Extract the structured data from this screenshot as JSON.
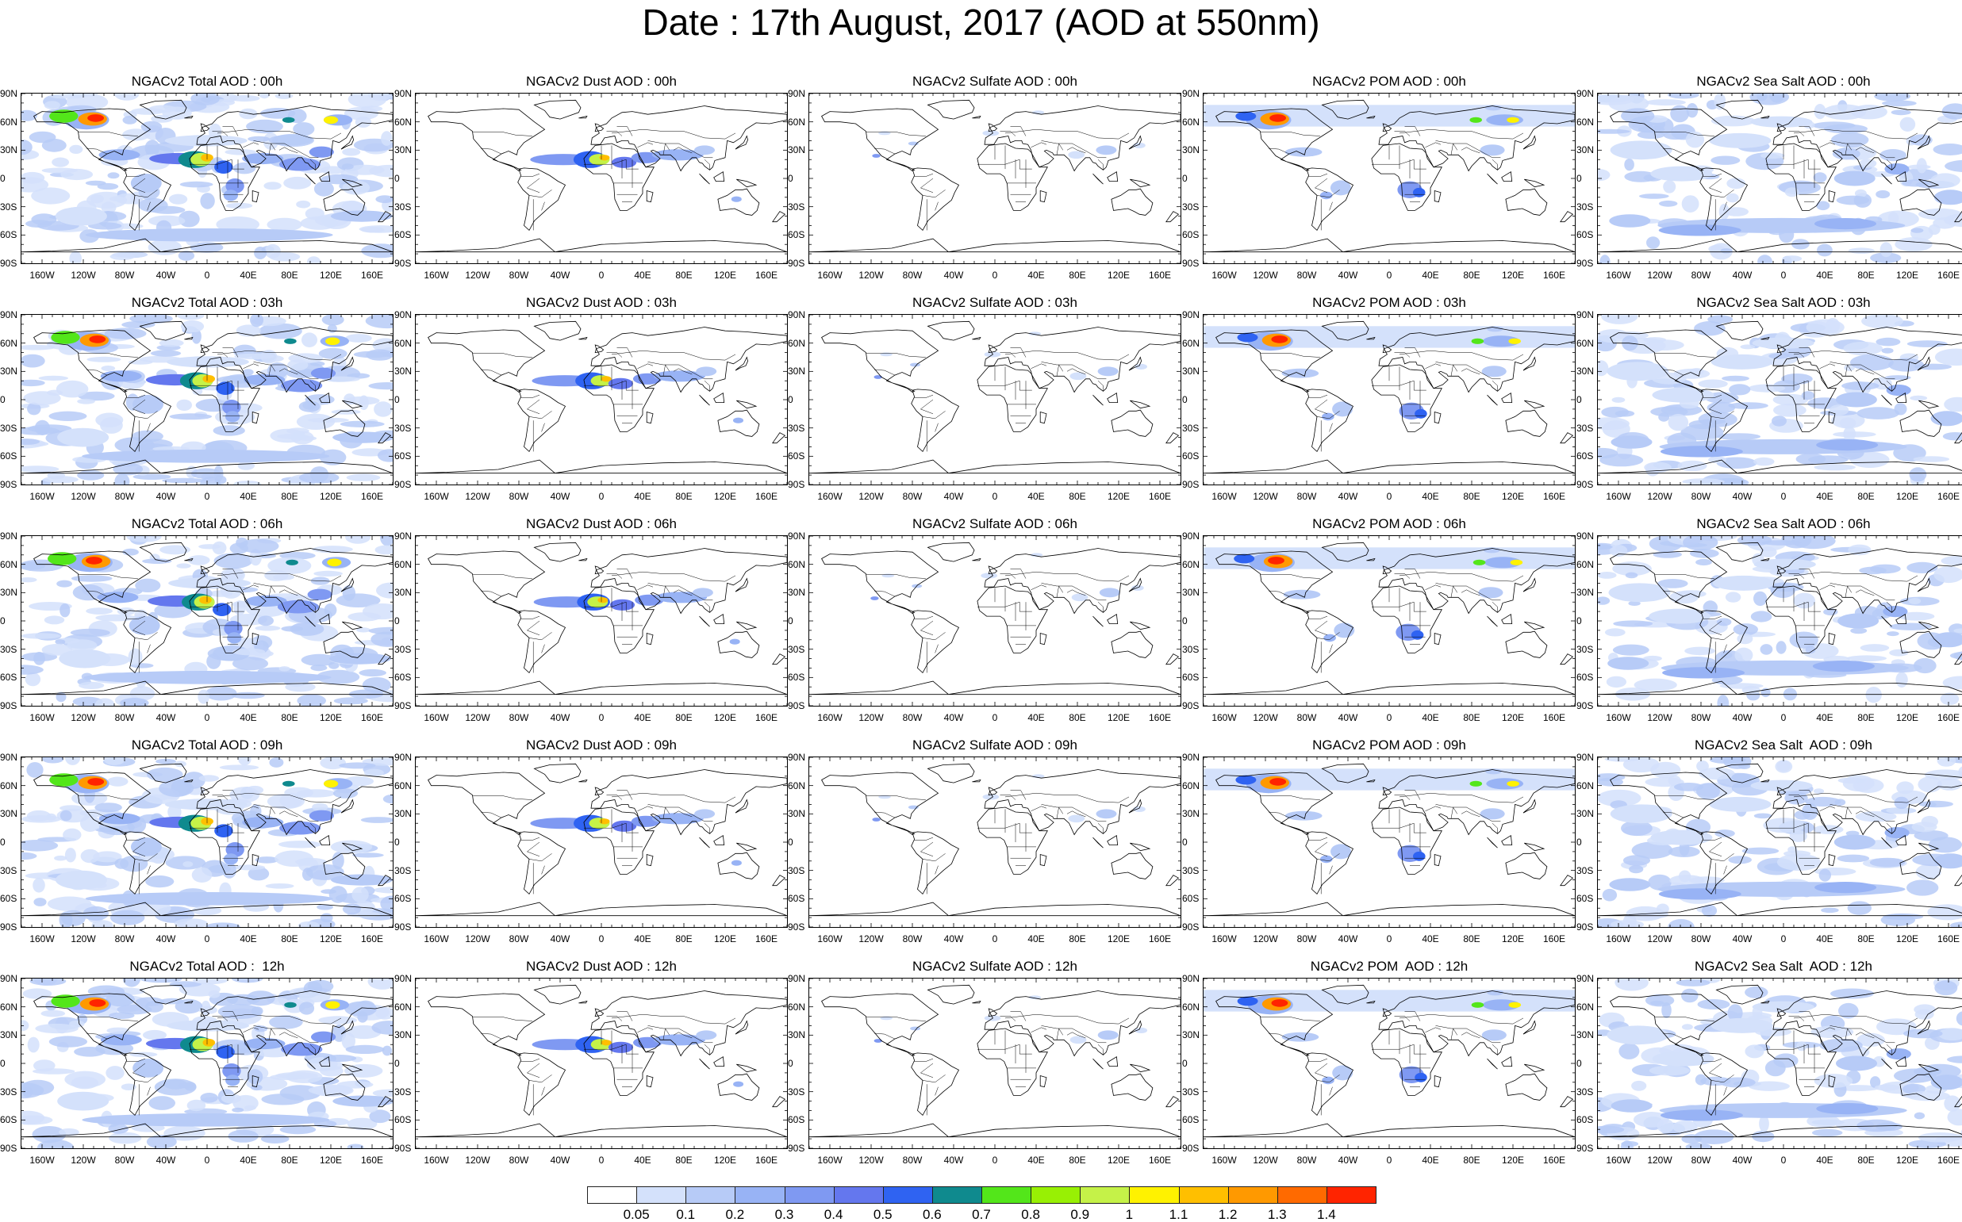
{
  "title": "Date : 17th August, 2017 (AOD at 550nm)",
  "panels": [
    [
      "NGACv2 Total AOD : 00h",
      "NGACv2 Dust AOD : 00h",
      "NGACv2 Sulfate AOD : 00h",
      "NGACv2 POM AOD : 00h",
      "NGACv2 Sea Salt AOD : 00h"
    ],
    [
      "NGACv2 Total AOD : 03h",
      "NGACv2 Dust AOD : 03h",
      "NGACv2 Sulfate AOD : 03h",
      "NGACv2 POM AOD : 03h",
      "NGACv2 Sea Salt AOD : 03h"
    ],
    [
      "NGACv2 Total AOD : 06h",
      "NGACv2 Dust AOD : 06h",
      "NGACv2 Sulfate AOD : 06h",
      "NGACv2 POM AOD : 06h",
      "NGACv2 Sea Salt AOD : 06h"
    ],
    [
      "NGACv2 Total AOD : 09h",
      "NGACv2 Dust AOD : 09h",
      "NGACv2 Sulfate AOD : 09h",
      "NGACv2 POM AOD : 09h",
      "NGACv2 Sea Salt  AOD : 09h"
    ],
    [
      "NGACv2 Total AOD :  12h",
      "NGACv2 Dust AOD : 12h",
      "NGACv2 Sulfate AOD : 12h",
      "NGACv2 POM  AOD : 12h",
      "NGACv2 Sea Salt  AOD : 12h"
    ]
  ],
  "species": [
    "total",
    "dust",
    "sulfate",
    "pom",
    "seasalt"
  ],
  "lat_ticks": [
    "90N",
    "60N",
    "30N",
    "0",
    "30S",
    "60S",
    "90S"
  ],
  "lon_ticks": [
    "160W",
    "120W",
    "80W",
    "40W",
    "0",
    "40E",
    "80E",
    "120E",
    "160E"
  ],
  "lon_tick_values": [
    -160,
    -120,
    -80,
    -40,
    0,
    40,
    80,
    120,
    160
  ],
  "colorbar": {
    "labels": [
      "0.05",
      "0.1",
      "0.2",
      "0.3",
      "0.4",
      "0.5",
      "0.6",
      "0.7",
      "0.8",
      "0.9",
      "1",
      "1.1",
      "1.2",
      "1.3",
      "1.4"
    ],
    "colors": [
      "#ffffff",
      "#d4e1fb",
      "#b7cbf7",
      "#98b3f5",
      "#7f99f2",
      "#6477ee",
      "#2f63f2",
      "#0f8a8e",
      "#53e61a",
      "#98f004",
      "#c5f248",
      "#fff200",
      "#ffbf00",
      "#ff9900",
      "#ff6a00",
      "#ff2400"
    ]
  },
  "map_colors": {
    "land_outline": "#000000"
  }
}
